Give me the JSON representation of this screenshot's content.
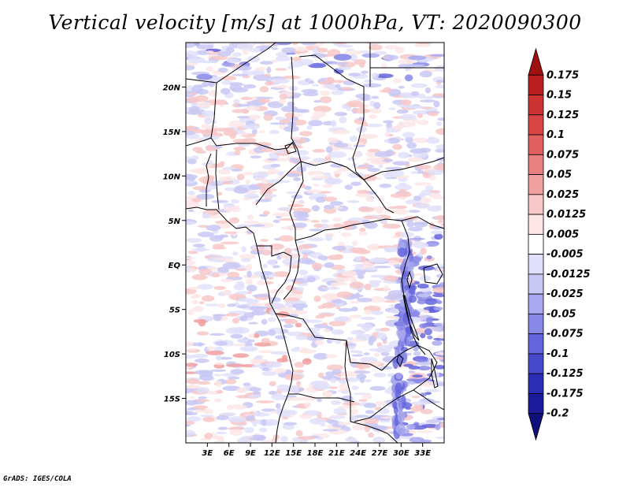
{
  "title": "Vertical velocity [m/s] at 1000hPa, VT: 2020090300",
  "footer": "GrADS: IGES/COLA",
  "map": {
    "lon_range": [
      0,
      36
    ],
    "lat_range": [
      -20,
      25
    ],
    "lon_ticks": [
      "3E",
      "6E",
      "9E",
      "12E",
      "15E",
      "18E",
      "21E",
      "24E",
      "27E",
      "30E",
      "33E"
    ],
    "lat_ticks": [
      "20N",
      "15N",
      "10N",
      "5N",
      "EQ",
      "5S",
      "10S",
      "15S"
    ]
  },
  "colorbar": {
    "labels": [
      "0.175",
      "0.15",
      "0.125",
      "0.1",
      "0.075",
      "0.05",
      "0.025",
      "0.0125",
      "0.005",
      "-0.005",
      "-0.0125",
      "-0.025",
      "-0.05",
      "-0.075",
      "-0.1",
      "-0.125",
      "-0.175",
      "-0.2"
    ],
    "colors": [
      "#a01010",
      "#bb2020",
      "#cc3333",
      "#d84545",
      "#e06060",
      "#e88080",
      "#f0a0a0",
      "#f8c8c8",
      "#fde6e6",
      "#ffffff",
      "#e0e0fa",
      "#c8c8f4",
      "#a8a8ee",
      "#8888e6",
      "#6464dc",
      "#4848cc",
      "#2c2cb4",
      "#1c1c9a",
      "#10107a"
    ]
  }
}
